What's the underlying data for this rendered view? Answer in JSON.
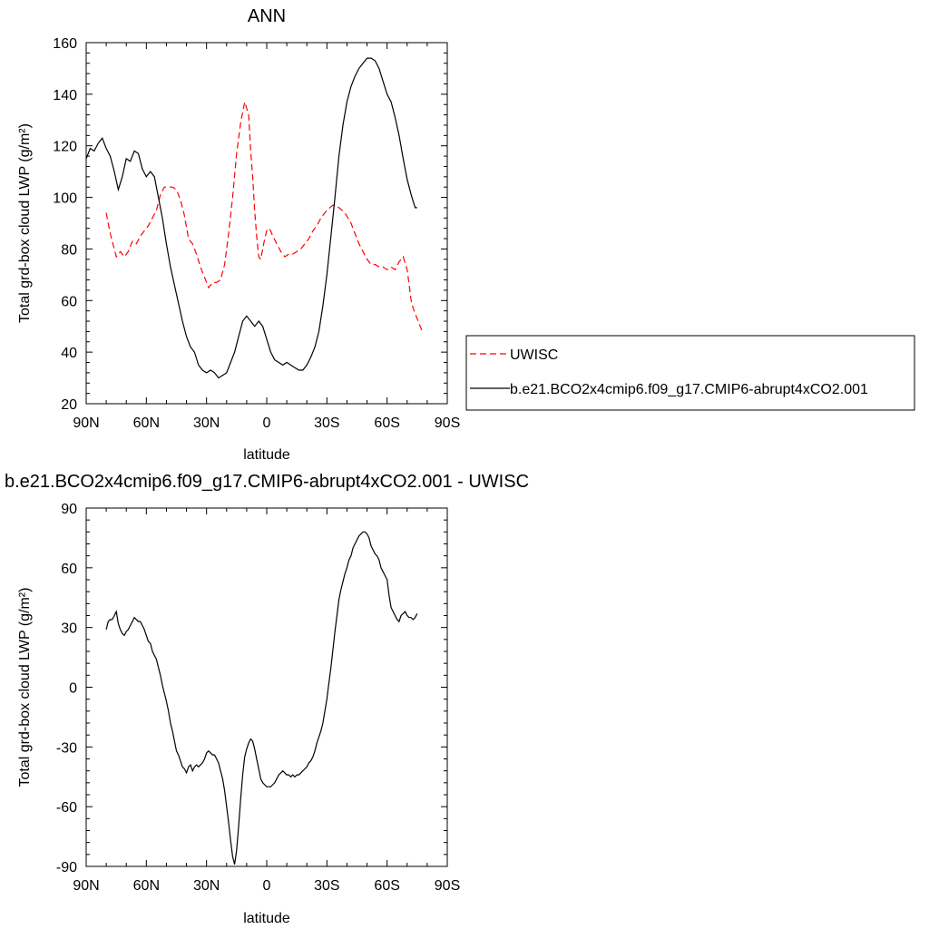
{
  "chart_data": [
    {
      "type": "line",
      "title": "ANN",
      "xlabel": "latitude",
      "ylabel": "Total grd-box cloud LWP (g/m²)",
      "x_ticks": [
        90,
        60,
        30,
        0,
        -30,
        -60,
        -90
      ],
      "x_tick_labels": [
        "90N",
        "60N",
        "30N",
        "0",
        "30S",
        "60S",
        "90S"
      ],
      "xlim": [
        90,
        -90
      ],
      "ylim": [
        20,
        160
      ],
      "y_ticks": [
        20,
        40,
        60,
        80,
        100,
        120,
        140,
        160
      ],
      "legend": "right",
      "series": [
        {
          "name": "UWISC",
          "color": "#ff0000",
          "dashed": true,
          "x": [
            80,
            79,
            78,
            77,
            75,
            73,
            71,
            69,
            67,
            65,
            63,
            61,
            59,
            57,
            55,
            53,
            51,
            49,
            47,
            45,
            43,
            41,
            39,
            37,
            35,
            33,
            31,
            29,
            27,
            25,
            23,
            21,
            19,
            17,
            15,
            13,
            11,
            9,
            8,
            7,
            6,
            5,
            4,
            3,
            2,
            1,
            0,
            -1,
            -2,
            -3,
            -5,
            -7,
            -9,
            -11,
            -13,
            -15,
            -17,
            -19,
            -21,
            -23,
            -25,
            -27,
            -30,
            -33,
            -36,
            -39,
            -42,
            -44,
            -46,
            -48,
            -50,
            -52,
            -54,
            -56,
            -58,
            -60,
            -62,
            -64,
            -66,
            -68,
            -70,
            -71,
            -72,
            -73,
            -74,
            -75,
            -76,
            -77,
            -78
          ],
          "y": [
            94,
            90,
            86,
            83,
            77,
            79,
            77,
            79,
            83,
            82,
            85,
            87,
            89,
            92,
            95,
            101,
            104,
            104,
            104,
            103,
            99,
            93,
            84,
            82,
            78,
            73,
            69,
            65,
            67,
            67,
            68,
            74,
            86,
            100,
            117,
            129,
            137,
            132,
            118,
            108,
            95,
            85,
            77,
            76,
            80,
            84,
            87,
            88,
            87,
            85,
            82,
            79,
            77,
            78,
            78,
            79,
            80,
            82,
            84,
            87,
            89,
            92,
            95,
            97,
            96,
            94,
            90,
            86,
            82,
            79,
            76,
            74,
            74,
            73,
            73,
            72,
            73,
            72,
            75,
            77,
            72,
            66,
            60,
            57,
            55,
            53,
            51,
            49,
            48
          ]
        },
        {
          "name": "b.e21.BCO2x4cmip6.f09_g17.CMIP6-abrupt4xCO2.001",
          "color": "#000000",
          "dashed": false,
          "x": [
            90,
            88,
            86,
            84,
            82,
            80,
            78,
            76,
            74,
            72,
            70,
            68,
            66,
            64,
            62,
            60,
            58,
            56,
            54,
            52,
            50,
            48,
            46,
            44,
            42,
            40,
            38,
            36,
            34,
            32,
            30,
            28,
            26,
            24,
            22,
            20,
            18,
            16,
            14,
            12,
            10,
            8,
            6,
            4,
            2,
            0,
            -2,
            -4,
            -6,
            -8,
            -10,
            -12,
            -14,
            -16,
            -18,
            -20,
            -22,
            -24,
            -26,
            -28,
            -30,
            -32,
            -34,
            -36,
            -38,
            -40,
            -42,
            -44,
            -46,
            -48,
            -50,
            -52,
            -54,
            -56,
            -58,
            -60,
            -62,
            -64,
            -66,
            -68,
            -70,
            -72,
            -74,
            -75
          ],
          "y": [
            115,
            119,
            118,
            121,
            123,
            119,
            116,
            110,
            103,
            108,
            115,
            114,
            118,
            117,
            111,
            108,
            110,
            108,
            100,
            92,
            82,
            73,
            66,
            59,
            52,
            46,
            42,
            40,
            35,
            33,
            32,
            33,
            32,
            30,
            31,
            32,
            36,
            40,
            46,
            52,
            54,
            52,
            50,
            52,
            50,
            45,
            40,
            37,
            36,
            35,
            36,
            35,
            34,
            33,
            33,
            35,
            38,
            42,
            48,
            58,
            70,
            85,
            100,
            116,
            128,
            137,
            143,
            147,
            150,
            152,
            154,
            154,
            153,
            150,
            145,
            140,
            137,
            131,
            124,
            115,
            107,
            101,
            96,
            96
          ]
        }
      ]
    },
    {
      "type": "line",
      "title": "b.e21.BCO2x4cmip6.f09_g17.CMIP6-abrupt4xCO2.001 - UWISC",
      "xlabel": "latitude",
      "ylabel": "Total grd-box cloud LWP (g/m²)",
      "x_ticks": [
        90,
        60,
        30,
        0,
        -30,
        -60,
        -90
      ],
      "x_tick_labels": [
        "90N",
        "60N",
        "30N",
        "0",
        "30S",
        "60S",
        "90S"
      ],
      "xlim": [
        90,
        -90
      ],
      "ylim": [
        -90,
        90
      ],
      "y_ticks": [
        -90,
        -60,
        -30,
        0,
        30,
        60,
        90
      ],
      "series": [
        {
          "color": "#000000",
          "dashed": false,
          "x": [
            80,
            79,
            78,
            77,
            76,
            75,
            74,
            73,
            72,
            71,
            70,
            69,
            68,
            67,
            66,
            65,
            64,
            63,
            62,
            61,
            60,
            59,
            58,
            57,
            56,
            55,
            54,
            53,
            52,
            51,
            50,
            49,
            48,
            47,
            46,
            45,
            44,
            43,
            42,
            41,
            40,
            39,
            38,
            37,
            36,
            35,
            34,
            33,
            32,
            31,
            30,
            29,
            28,
            27,
            26,
            25,
            24,
            23,
            22,
            21,
            20,
            19,
            18,
            17,
            16,
            15,
            14,
            13,
            12,
            11,
            10,
            9,
            8,
            7,
            6,
            5,
            4,
            3,
            2,
            1,
            0,
            -1,
            -2,
            -3,
            -4,
            -5,
            -6,
            -7,
            -8,
            -9,
            -10,
            -11,
            -12,
            -13,
            -14,
            -15,
            -16,
            -17,
            -18,
            -19,
            -20,
            -21,
            -22,
            -23,
            -24,
            -25,
            -26,
            -27,
            -28,
            -29,
            -30,
            -31,
            -32,
            -33,
            -34,
            -35,
            -36,
            -37,
            -38,
            -39,
            -40,
            -41,
            -42,
            -43,
            -44,
            -45,
            -46,
            -47,
            -48,
            -49,
            -50,
            -51,
            -52,
            -53,
            -54,
            -55,
            -56,
            -57,
            -58,
            -59,
            -60,
            -61,
            -62,
            -63,
            -64,
            -65,
            -66,
            -67,
            -68,
            -69,
            -70,
            -71,
            -72,
            -73,
            -74,
            -75
          ],
          "y": [
            29,
            33,
            34,
            34,
            36,
            38,
            32,
            29,
            27,
            26,
            28,
            29,
            31,
            33,
            35,
            34,
            33,
            33,
            31,
            29,
            26,
            23,
            22,
            18,
            16,
            14,
            10,
            6,
            1,
            -3,
            -7,
            -12,
            -18,
            -22,
            -27,
            -32,
            -34,
            -37,
            -40,
            -41,
            -43,
            -40,
            -39,
            -42,
            -40,
            -39,
            -40,
            -39,
            -38,
            -36,
            -33,
            -32,
            -33,
            -34,
            -34,
            -36,
            -38,
            -42,
            -46,
            -52,
            -60,
            -68,
            -77,
            -85,
            -89,
            -82,
            -70,
            -56,
            -44,
            -35,
            -31,
            -28,
            -26,
            -27,
            -31,
            -36,
            -41,
            -46,
            -48,
            -49,
            -50,
            -50,
            -50,
            -49,
            -48,
            -46,
            -44,
            -43,
            -42,
            -43,
            -44,
            -44,
            -45,
            -44,
            -45,
            -44,
            -44,
            -43,
            -42,
            -41,
            -40,
            -38,
            -37,
            -35,
            -32,
            -28,
            -25,
            -22,
            -18,
            -12,
            -6,
            2,
            10,
            19,
            28,
            36,
            44,
            49,
            53,
            57,
            60,
            64,
            66,
            70,
            72,
            74,
            76,
            77,
            78,
            78,
            77,
            75,
            71,
            69,
            67,
            66,
            64,
            60,
            58,
            56,
            54,
            46,
            40,
            38,
            36,
            34,
            33,
            36,
            37,
            38,
            36,
            35,
            35,
            34,
            35,
            37
          ]
        }
      ]
    }
  ]
}
